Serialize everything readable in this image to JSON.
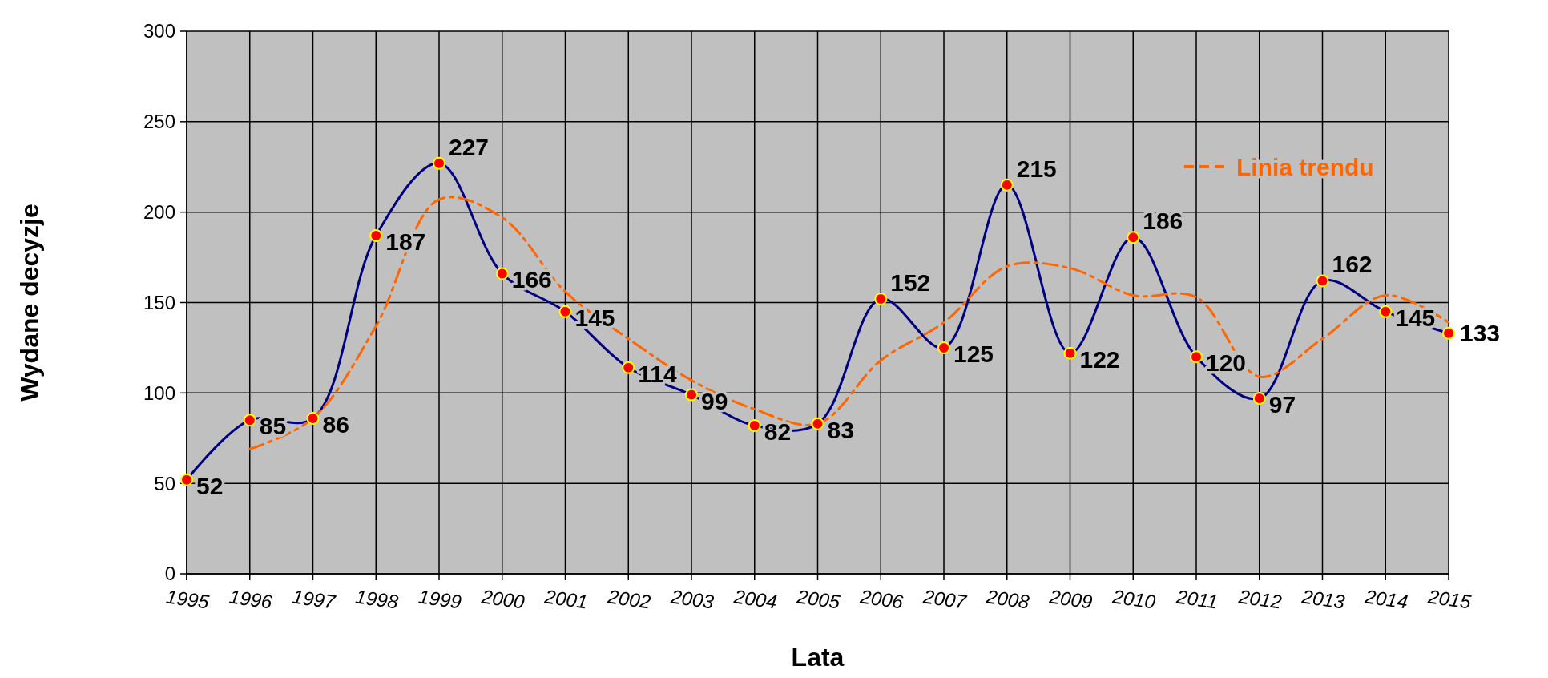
{
  "chart_data": {
    "type": "line",
    "xlabel": "Lata",
    "ylabel": "Wydane decyzje",
    "categories": [
      "1995",
      "1996",
      "1997",
      "1998",
      "1999",
      "2000",
      "2001",
      "2002",
      "2003",
      "2004",
      "2005",
      "2006",
      "2007",
      "2008",
      "2009",
      "2010",
      "2011",
      "2012",
      "2013",
      "2014",
      "2015"
    ],
    "series": [
      {
        "color": "#000080",
        "marker": "circle",
        "line_style": "solid",
        "data_labels": true,
        "values": [
          52,
          85,
          86,
          187,
          227,
          166,
          145,
          114,
          99,
          82,
          83,
          152,
          125,
          215,
          122,
          186,
          120,
          97,
          162,
          145,
          133
        ]
      },
      {
        "name": "Linia  trendu",
        "color": "#ff6600",
        "marker": "none",
        "line_style": "dashed",
        "values": [
          null,
          69,
          86,
          137,
          207,
          197,
          156,
          130,
          107,
          91,
          83,
          118,
          139,
          170,
          169,
          154,
          153,
          109,
          130,
          154,
          139
        ]
      }
    ],
    "ylim": [
      0,
      300
    ],
    "yticks": [
      0,
      50,
      100,
      150,
      200,
      250,
      300
    ],
    "grid": true,
    "legend": "top right"
  }
}
